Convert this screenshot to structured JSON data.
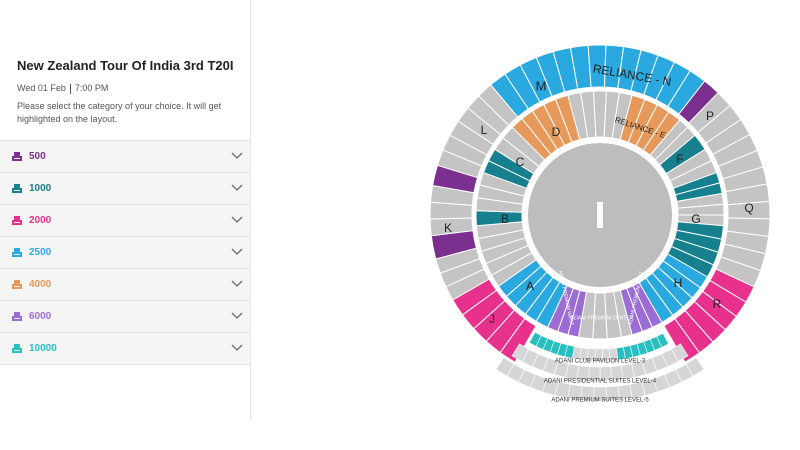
{
  "event": {
    "title": "New Zealand Tour Of India 3rd T20I",
    "date": "Wed 01 Feb",
    "time": "7:00 PM",
    "instruction": "Please select the category of your choice. It will get highlighted on the layout."
  },
  "categories": [
    {
      "price": 500,
      "color": "#7b2f8f"
    },
    {
      "price": 1000,
      "color": "#17808f"
    },
    {
      "price": 2000,
      "color": "#e8318c"
    },
    {
      "price": 2500,
      "color": "#2aa9e0"
    },
    {
      "price": 4000,
      "color": "#e6995a"
    },
    {
      "price": 6000,
      "color": "#9a6cd4"
    },
    {
      "price": 10000,
      "color": "#27bfbf"
    }
  ],
  "layout": {
    "stands": [
      "M",
      "RELIANCE - N",
      "L",
      "D",
      "RELIANCE - E",
      "C",
      "F",
      "P",
      "B",
      "G",
      "K",
      "Q",
      "A",
      "H",
      "J",
      "R"
    ],
    "premium": [
      "ADANI PREMIUM WEST",
      "ADANI PREMIUM CENTER",
      "ADANI PREMIUM EAST"
    ],
    "levels": [
      "ADANI CLUB PAVILION LEVEL-3",
      "ADANI PRESIDENTIAL SUITES LEVEL-4",
      "ADANI PREMIUM SUITES LEVEL-5"
    ]
  }
}
